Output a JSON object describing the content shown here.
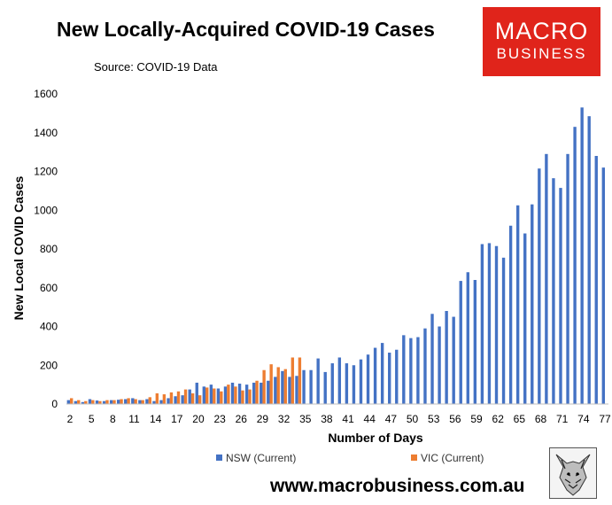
{
  "header": {
    "title": "New Locally-Acquired COVID-19 Cases",
    "subtitle": "Source: COVID-19 Data"
  },
  "logo": {
    "line1": "MACRO",
    "line2": "BUSINESS",
    "color": "#e0241b"
  },
  "footer": {
    "website": "www.macrobusiness.com.au"
  },
  "icons": {
    "mascot": "wolf-mascot-icon"
  },
  "chart_data": {
    "type": "bar",
    "title": "New Locally-Acquired COVID-19 Cases",
    "xlabel": "Number of Days",
    "ylabel": "New Local COVID Cases",
    "ylim": [
      0,
      1600
    ],
    "yticks": [
      0,
      200,
      400,
      600,
      800,
      1000,
      1200,
      1400,
      1600
    ],
    "xlim": [
      2,
      77
    ],
    "xticks": [
      2,
      5,
      8,
      11,
      14,
      17,
      20,
      23,
      26,
      29,
      32,
      35,
      38,
      41,
      44,
      47,
      50,
      53,
      56,
      59,
      62,
      65,
      68,
      71,
      74,
      77
    ],
    "grid": false,
    "legend_position": "bottom",
    "series": [
      {
        "name": "NSW (Current)",
        "color": "#4472c4",
        "x": [
          2,
          3,
          4,
          5,
          6,
          7,
          8,
          9,
          10,
          11,
          12,
          13,
          14,
          15,
          16,
          17,
          18,
          19,
          20,
          21,
          22,
          23,
          24,
          25,
          26,
          27,
          28,
          29,
          30,
          31,
          32,
          33,
          34,
          35,
          36,
          37,
          38,
          39,
          40,
          41,
          42,
          43,
          44,
          45,
          46,
          47,
          48,
          49,
          50,
          51,
          52,
          53,
          54,
          55,
          56,
          57,
          58,
          59,
          60,
          61,
          62,
          63,
          64,
          65,
          66,
          67,
          68,
          69,
          70,
          71,
          72,
          73,
          74,
          75,
          76,
          77
        ],
        "values": [
          20,
          15,
          10,
          25,
          18,
          15,
          20,
          22,
          25,
          30,
          20,
          25,
          15,
          20,
          30,
          40,
          45,
          75,
          110,
          90,
          100,
          80,
          90,
          110,
          105,
          100,
          110,
          110,
          120,
          140,
          170,
          140,
          145,
          175,
          175,
          235,
          165,
          210,
          240,
          210,
          200,
          230,
          255,
          290,
          315,
          265,
          280,
          355,
          340,
          345,
          390,
          465,
          400,
          480,
          450,
          635,
          680,
          640,
          825,
          830,
          815,
          755,
          920,
          1025,
          880,
          1030,
          1215,
          1290,
          1165,
          1115,
          1290,
          1430,
          1530,
          1485,
          1280,
          1220
        ]
      },
      {
        "name": "VIC (Current)",
        "color": "#ed7d31",
        "x": [
          2,
          3,
          4,
          5,
          6,
          7,
          8,
          9,
          10,
          11,
          12,
          13,
          14,
          15,
          16,
          17,
          18,
          19,
          20,
          21,
          22,
          23,
          24,
          25,
          26,
          27,
          28,
          29,
          30,
          31,
          32,
          33,
          34
        ],
        "values": [
          30,
          20,
          15,
          20,
          15,
          20,
          20,
          25,
          30,
          25,
          20,
          35,
          55,
          50,
          60,
          65,
          75,
          55,
          45,
          85,
          80,
          65,
          100,
          90,
          70,
          75,
          120,
          175,
          205,
          190,
          180,
          240,
          240
        ]
      }
    ]
  }
}
